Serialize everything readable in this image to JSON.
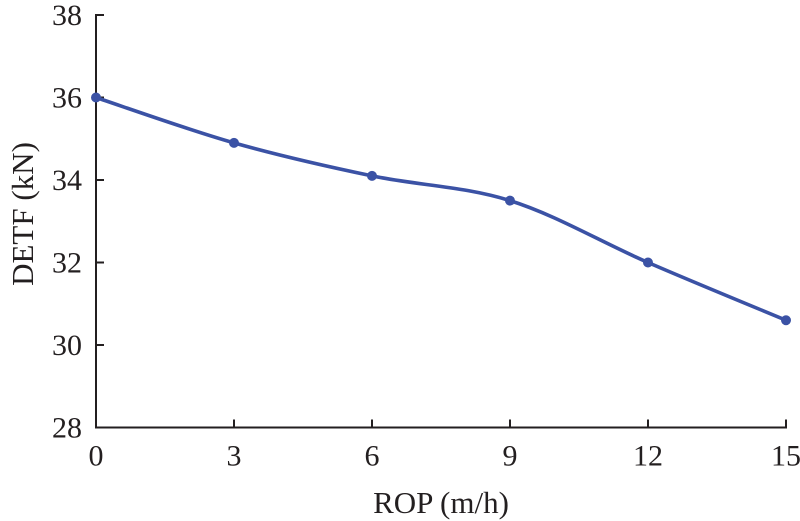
{
  "chart_data": {
    "type": "line",
    "title": "",
    "xlabel": "ROP (m/h)",
    "ylabel": "DETF (kN)",
    "x": [
      0,
      3,
      6,
      9,
      12,
      15
    ],
    "series": [
      {
        "name": "DETF",
        "values": [
          36.0,
          34.9,
          34.1,
          33.5,
          32.0,
          30.6
        ]
      }
    ],
    "xlim": [
      0,
      15
    ],
    "ylim": [
      28,
      38
    ],
    "xticks": [
      0,
      3,
      6,
      9,
      12,
      15
    ],
    "yticks": [
      28,
      30,
      32,
      34,
      36,
      38
    ],
    "grid": false,
    "legend": "none",
    "marker": "circle",
    "line_color": "#3b52a5",
    "marker_color": "#3b52a5",
    "axis_color": "#231f20",
    "text_color": "#231f20"
  }
}
